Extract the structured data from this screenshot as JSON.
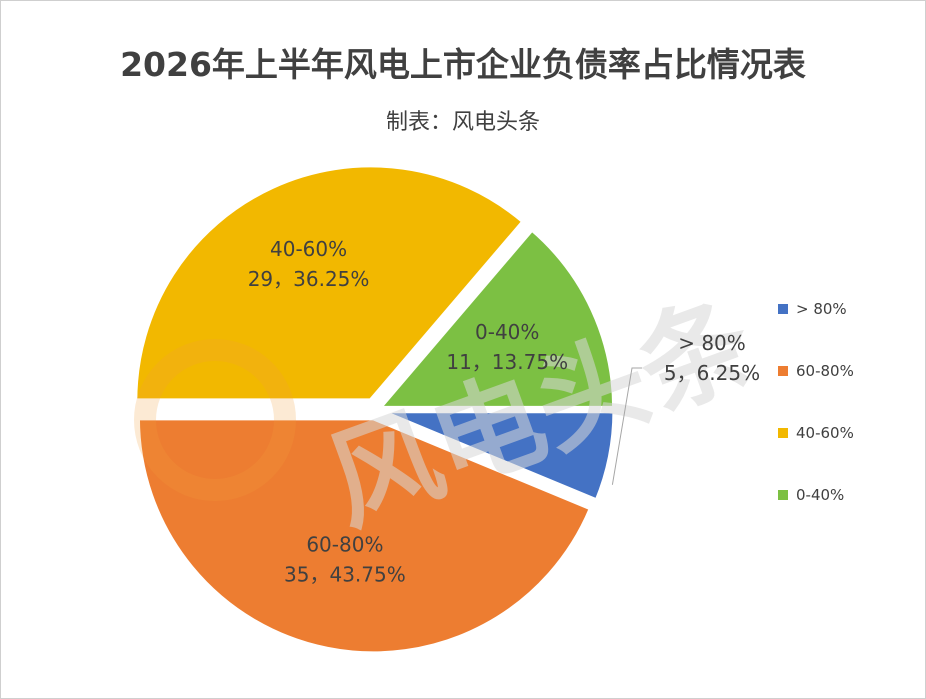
{
  "title": "2026年上半年风电上市企业负债率占比情况表",
  "subtitle": "制表：风电头条",
  "watermark": "风电头条",
  "chart_data": {
    "type": "pie",
    "title": "2026年上半年风电上市企业负债率占比情况表",
    "legend_position": "right",
    "slices": [
      {
        "name": "> 80%",
        "count": 5,
        "percent": 6.25,
        "count_label": "5，6.25%",
        "color": "#4472c4"
      },
      {
        "name": "60-80%",
        "count": 35,
        "percent": 43.75,
        "count_label": "35，43.75%",
        "color": "#ed7d31"
      },
      {
        "name": "40-60%",
        "count": 29,
        "percent": 36.25,
        "count_label": "29，36.25%",
        "color": "#f2b800"
      },
      {
        "name": "0-40%",
        "count": 11,
        "percent": 13.75,
        "count_label": "11，13.75%",
        "color": "#7cc043"
      }
    ]
  }
}
